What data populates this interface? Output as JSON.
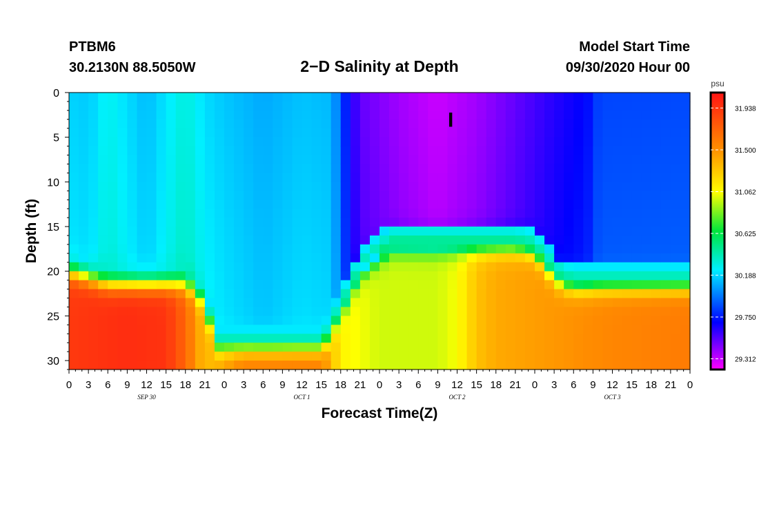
{
  "header": {
    "station": "PTBM6",
    "coords": "30.2130N 88.5050W",
    "title": "2−D Salinity at Depth",
    "model_start_label": "Model Start Time",
    "model_start_value": "09/30/2020 Hour 00"
  },
  "chart_data": {
    "type": "heatmap",
    "title": "2−D Salinity at Depth",
    "xlabel": "Forecast Time(Z)",
    "ylabel": "Depth (ft)",
    "x_range_hours": [
      0,
      96
    ],
    "y_range_ft": [
      0,
      31
    ],
    "y_ticks": [
      0,
      5,
      10,
      15,
      20,
      25,
      30
    ],
    "x_tick_labels": [
      "0",
      "3",
      "6",
      "9",
      "12",
      "15",
      "18",
      "21",
      "0",
      "3",
      "6",
      "9",
      "12",
      "15",
      "18",
      "21",
      "0",
      "3",
      "6",
      "9",
      "12",
      "15",
      "18",
      "21",
      "0",
      "3",
      "6",
      "9",
      "12",
      "15",
      "18",
      "21",
      "0"
    ],
    "day_labels": [
      "SEP 30",
      "OCT 1",
      "OCT 2",
      "OCT 3"
    ],
    "colorbar": {
      "unit": "psu",
      "min": 29.2,
      "max": 32.1,
      "tick_values": [
        31.938,
        31.5,
        31.062,
        30.625,
        30.188,
        29.75,
        29.312
      ],
      "tick_labels": [
        "31.938",
        "31.500",
        "31.062",
        "30.625",
        "30.188",
        "29.750",
        "29.312"
      ]
    },
    "interface_depth_ft": [
      [
        0,
        20.0
      ],
      [
        3,
        20.7
      ],
      [
        6,
        21.4
      ],
      [
        18,
        21.4
      ],
      [
        20,
        22.5
      ],
      [
        22,
        26.0
      ],
      [
        23,
        28.5
      ],
      [
        39,
        28.5
      ],
      [
        40,
        27.5
      ],
      [
        43,
        23.0
      ],
      [
        45,
        20.0
      ],
      [
        48,
        18.0
      ],
      [
        50,
        17.0
      ],
      [
        69,
        17.0
      ],
      [
        72,
        17.5
      ],
      [
        74,
        19.5
      ],
      [
        76,
        21.0
      ],
      [
        78,
        21.5
      ],
      [
        96,
        21.5
      ]
    ],
    "lower_layer_salinity_psu": [
      [
        0,
        31.92
      ],
      [
        9,
        31.98
      ],
      [
        15,
        31.95
      ],
      [
        18,
        31.7
      ],
      [
        21,
        31.3
      ],
      [
        27,
        31.6
      ],
      [
        39,
        31.6
      ],
      [
        42,
        31.1
      ],
      [
        48,
        30.98
      ],
      [
        57,
        30.98
      ],
      [
        60,
        31.05
      ],
      [
        63,
        31.3
      ],
      [
        66,
        31.4
      ],
      [
        72,
        31.45
      ],
      [
        78,
        31.5
      ],
      [
        84,
        31.55
      ],
      [
        96,
        31.6
      ]
    ],
    "upper_layer_salinity_psu": [
      [
        0,
        30.15
      ],
      [
        1,
        30.18
      ],
      [
        3,
        30.15
      ],
      [
        6,
        30.28
      ],
      [
        9,
        30.2
      ],
      [
        12,
        30.12
      ],
      [
        15,
        30.22
      ],
      [
        18,
        30.32
      ],
      [
        21,
        30.2
      ],
      [
        24,
        30.15
      ],
      [
        30,
        30.08
      ],
      [
        36,
        30.14
      ],
      [
        40,
        30.12
      ],
      [
        42,
        29.95
      ],
      [
        43,
        29.7
      ],
      [
        45,
        29.5
      ],
      [
        51,
        29.38
      ],
      [
        57,
        29.3
      ],
      [
        63,
        29.38
      ],
      [
        69,
        29.5
      ],
      [
        75,
        29.62
      ],
      [
        80,
        29.7
      ],
      [
        82,
        29.85
      ],
      [
        96,
        29.86
      ]
    ],
    "annotation": "I",
    "annotation_time_hours": 59,
    "annotation_depth_ft": [
      1.5,
      3.5
    ]
  }
}
